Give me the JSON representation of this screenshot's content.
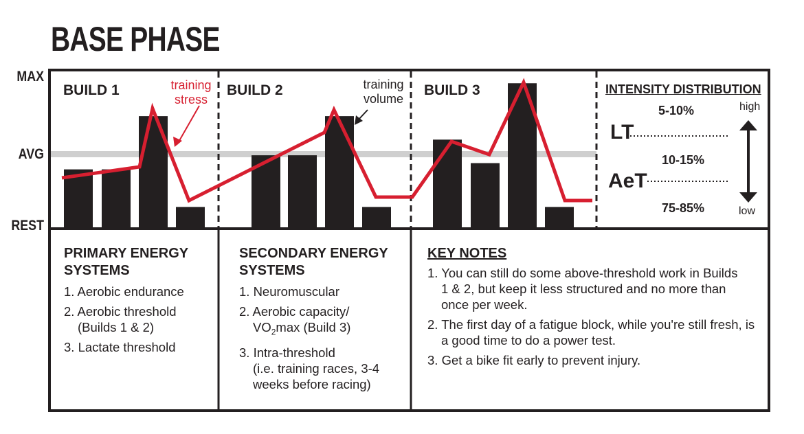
{
  "title": "BASE PHASE",
  "y_axis": {
    "max": "MAX",
    "avg": "AVG",
    "rest": "REST"
  },
  "builds": [
    "BUILD 1",
    "BUILD 2",
    "BUILD 3"
  ],
  "annotations": {
    "stress": "training stress",
    "volume": "training volume"
  },
  "colors": {
    "stress_line": "#d71f30",
    "bars": "#231f20",
    "avg_band": "#cfcfcf"
  },
  "levels_scale": "0 = REST, 100 = MAX",
  "training_volume_levels": [
    [
      37,
      37,
      71,
      13
    ],
    [
      46,
      46,
      71,
      13
    ],
    [
      56,
      41,
      92,
      13
    ]
  ],
  "intensity": {
    "heading": "INTENSITY DISTRIBUTION",
    "top_pct": "5-10%",
    "lt": "LT",
    "mid_pct": "10-15%",
    "aet": "AeT",
    "bottom_pct": "75-85%",
    "high": "high",
    "low": "low"
  },
  "primary": {
    "heading": [
      "PRIMARY ENERGY",
      "SYSTEMS"
    ],
    "items": [
      "1. Aerobic endurance",
      "2. Aerobic threshold",
      "(Builds 1 & 2)",
      "3. Lactate threshold"
    ]
  },
  "secondary": {
    "heading": [
      "SECONDARY ENERGY",
      "SYSTEMS"
    ],
    "items": [
      "1. Neuromuscular",
      "2. Aerobic capacity/",
      "VO",
      "2",
      "max (Build 3)",
      "3. Intra-threshold",
      "(i.e. training races, 3-4",
      "weeks before racing)"
    ]
  },
  "key_notes": {
    "heading": "KEY NOTES",
    "items": [
      [
        "1. You can still do some above-threshold work in Builds",
        "1 & 2, but keep it less structured and no more than",
        "once per week."
      ],
      [
        "2. The first day of a fatigue block, while you're still fresh, is",
        "a good time to do a power test."
      ],
      [
        "3. Get a bike fit early to prevent injury."
      ]
    ]
  }
}
